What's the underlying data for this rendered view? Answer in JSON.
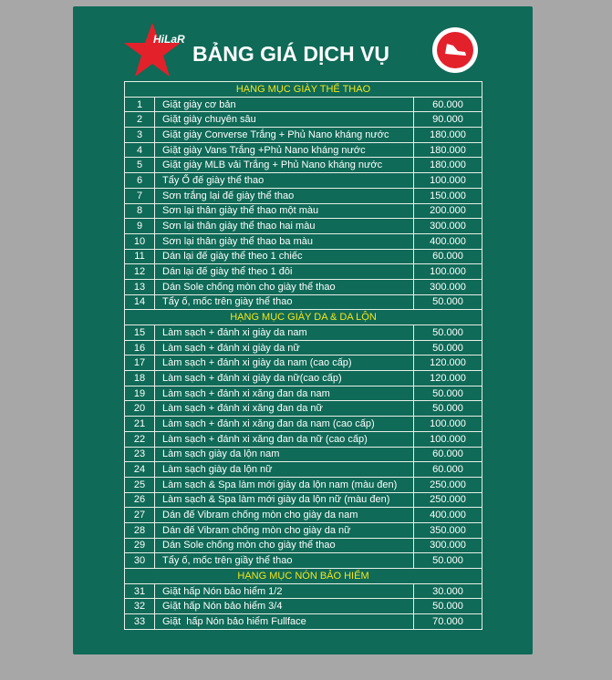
{
  "header": {
    "logo_text": "HiLaR",
    "title": "BẢNG GIÁ DỊCH VỤ"
  },
  "sections": [
    {
      "title": "HẠNG MỤC GIÀY THỂ THAO",
      "rows": [
        [
          "1",
          "Giặt giày cơ bản",
          "60.000"
        ],
        [
          "2",
          "Giặt giày chuyên sâu",
          "90.000"
        ],
        [
          "3",
          "Giặt giày Converse Trắng + Phủ Nano kháng nước",
          "180.000"
        ],
        [
          "4",
          "Giặt giày Vans Trắng +Phủ Nano kháng nước",
          "180.000"
        ],
        [
          "5",
          "Giặt giày MLB vải Trắng + Phủ Nano kháng nước",
          "180.000"
        ],
        [
          "6",
          "Tẩy Ố đế giày thể thao",
          "100.000"
        ],
        [
          "7",
          "Sơn trắng lại đế giày thể thao",
          "150.000"
        ],
        [
          "8",
          "Sơn lại thân giày thể thao một màu",
          "200.000"
        ],
        [
          "9",
          "Sơn lại thân giày thể thao hai màu",
          "300.000"
        ],
        [
          "10",
          "Sơn lại thân giày thể thao ba màu",
          "400.000"
        ],
        [
          "11",
          "Dán lại đế giày thể theo 1 chiếc",
          "60.000"
        ],
        [
          "12",
          "Dán lại đế giày thể theo 1 đôi",
          "100.000"
        ],
        [
          "13",
          "Dán Sole chống mòn cho giày thể thao",
          "300.000"
        ],
        [
          "14",
          "Tẩy ố, mốc trên giày thể thao",
          "50.000"
        ]
      ]
    },
    {
      "title": "HẠNG MỤC GIÀY DA & DA LỘN",
      "rows": [
        [
          "15",
          "Làm sạch + đánh xi giày da nam",
          "50.000"
        ],
        [
          "16",
          "Làm sạch + đánh xi giày da nữ",
          "50.000"
        ],
        [
          "17",
          "Làm sạch + đánh xi giày da nam (cao cấp)",
          "120.000"
        ],
        [
          "18",
          "Làm sạch + đánh xi giày da nữ(cao cấp)",
          "120.000"
        ],
        [
          "19",
          "Làm sạch + đánh xi xăng đan da nam",
          "50.000"
        ],
        [
          "20",
          "Làm sạch + đánh xi xăng đan da nữ",
          "50.000"
        ],
        [
          "21",
          "Làm sạch + đánh xi xăng đan da nam (cao cấp)",
          "100.000"
        ],
        [
          "22",
          "Làm sạch + đánh xi xăng đan da nữ (cao cấp)",
          "100.000"
        ],
        [
          "23",
          "Làm sạch giày da lộn nam",
          "60.000"
        ],
        [
          "24",
          "Làm sạch giày da lộn nữ",
          "60.000"
        ],
        [
          "25",
          "Làm sạch & Spa làm mới giày da lộn nam (màu đen)",
          "250.000"
        ],
        [
          "26",
          "Làm sạch & Spa làm mới giày da lộn nữ (màu đen)",
          "250.000"
        ],
        [
          "27",
          "Dán đế Vibram chống mòn cho giày da nam",
          "400.000"
        ],
        [
          "28",
          "Dán đế Vibram chống mòn cho giày da nữ",
          "350.000"
        ],
        [
          "29",
          "Dán Sole chống mòn cho giày thể thao",
          "300.000"
        ],
        [
          "30",
          "Tẩy ố, mốc trên giầy thể thao",
          "50.000"
        ]
      ]
    },
    {
      "title": "HẠNG MỤC NÓN BẢO HIỂM",
      "rows": [
        [
          "31",
          "Giặt hấp Nón bảo hiểm 1/2",
          "30.000"
        ],
        [
          "32",
          "Giặt hấp Nón bảo hiểm 3/4",
          "50.000"
        ],
        [
          "33",
          "Giặt  hấp Nón bảo hiểm Fullface",
          "70.000"
        ]
      ]
    }
  ]
}
